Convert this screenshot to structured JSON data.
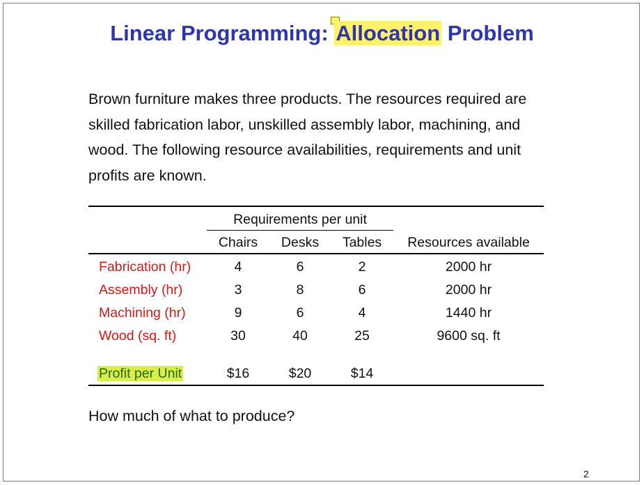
{
  "slide": {
    "title_before": "Linear Programming: ",
    "title_highlight": "Allocation",
    "title_after": " Problem",
    "intro_lines": [
      "Brown furniture makes three products. The resources required are",
      "skilled fabrication labor, unskilled assembly labor, machining, and",
      "wood.  The following resource availabilities, requirements and unit",
      "profits are known."
    ],
    "table": {
      "group_header": "Requirements per unit",
      "columns": [
        "Chairs",
        "Desks",
        "Tables"
      ],
      "available_header": "Resources available",
      "rows": [
        {
          "label": "Fabrication (hr)",
          "values": [
            "4",
            "6",
            "2"
          ],
          "available": "2000 hr"
        },
        {
          "label": "Assembly (hr)",
          "values": [
            "3",
            "8",
            "6"
          ],
          "available": "2000 hr"
        },
        {
          "label": "Machining (hr)",
          "values": [
            "9",
            "6",
            "4"
          ],
          "available": "1440 hr"
        },
        {
          "label": "Wood (sq. ft)",
          "values": [
            "30",
            "40",
            "25"
          ],
          "available": "9600 sq. ft"
        }
      ],
      "profit_row": {
        "label": "Profit per Unit",
        "values": [
          "$16",
          "$20",
          "$14"
        ]
      }
    },
    "question": "How much of what to produce?",
    "page_number": "2",
    "colors": {
      "title": "#2f35b0",
      "title_highlight": "#fff16a",
      "row_label": "#e01414",
      "profit_highlight": "#d9ee4a"
    }
  }
}
